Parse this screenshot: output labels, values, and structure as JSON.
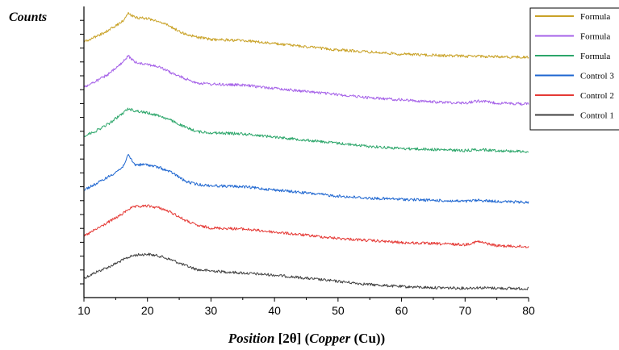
{
  "chart_data": {
    "type": "line",
    "title": "",
    "ylabel": "Counts",
    "xlabel_parts": [
      {
        "text": "Position ",
        "style": "italic"
      },
      {
        "text": "[2θ] (",
        "style": "normal"
      },
      {
        "text": "Copper ",
        "style": "italic"
      },
      {
        "text": "(Cu))",
        "style": "normal"
      }
    ],
    "xlim": [
      10,
      80
    ],
    "x_ticks": [
      10,
      20,
      30,
      40,
      50,
      60,
      70,
      80
    ],
    "y_ticks_labeled": false,
    "y_units": "arbitrary counts (normalized 0-1, series vertically offset)",
    "legend_position": "top-right",
    "grid": false,
    "x": [
      10,
      12,
      14,
      16,
      17,
      18,
      20,
      22,
      24,
      26,
      28,
      30,
      35,
      40,
      45,
      50,
      55,
      60,
      65,
      70,
      72,
      75,
      80
    ],
    "series": [
      {
        "name": "Control 1",
        "color": "#404040",
        "values": [
          0.1,
          0.16,
          0.21,
          0.27,
          0.3,
          0.32,
          0.33,
          0.31,
          0.27,
          0.22,
          0.18,
          0.17,
          0.15,
          0.13,
          0.1,
          0.07,
          0.04,
          0.02,
          0.01,
          0.005,
          0.01,
          0.005,
          0.0
        ]
      },
      {
        "name": "Control 2",
        "color": "#e53935",
        "values": [
          0.1,
          0.17,
          0.24,
          0.31,
          0.36,
          0.38,
          0.39,
          0.37,
          0.32,
          0.25,
          0.2,
          0.18,
          0.17,
          0.14,
          0.11,
          0.08,
          0.06,
          0.04,
          0.03,
          0.02,
          0.05,
          0.01,
          0.0
        ]
      },
      {
        "name": "Control 3",
        "color": "#1e66d0",
        "values": [
          0.12,
          0.18,
          0.25,
          0.33,
          0.45,
          0.36,
          0.36,
          0.33,
          0.28,
          0.2,
          0.17,
          0.16,
          0.15,
          0.12,
          0.09,
          0.06,
          0.04,
          0.03,
          0.02,
          0.01,
          0.02,
          0.01,
          0.0
        ]
      },
      {
        "name": "Formula",
        "color": "#2ca66a",
        "values": [
          0.15,
          0.2,
          0.27,
          0.36,
          0.41,
          0.39,
          0.37,
          0.34,
          0.29,
          0.23,
          0.19,
          0.18,
          0.17,
          0.14,
          0.11,
          0.08,
          0.05,
          0.03,
          0.02,
          0.01,
          0.02,
          0.01,
          0.0
        ]
      },
      {
        "name": "Formula",
        "color": "#a561e8",
        "values": [
          0.16,
          0.22,
          0.29,
          0.39,
          0.46,
          0.4,
          0.38,
          0.35,
          0.29,
          0.24,
          0.2,
          0.19,
          0.18,
          0.15,
          0.12,
          0.09,
          0.06,
          0.04,
          0.02,
          0.01,
          0.03,
          0.01,
          0.0
        ]
      },
      {
        "name": "Formula",
        "color": "#c9a227",
        "values": [
          0.15,
          0.2,
          0.26,
          0.34,
          0.42,
          0.38,
          0.37,
          0.34,
          0.28,
          0.22,
          0.19,
          0.17,
          0.16,
          0.13,
          0.1,
          0.07,
          0.05,
          0.03,
          0.02,
          0.01,
          0.01,
          0.005,
          0.0
        ]
      }
    ],
    "legend": [
      "Formula",
      "Formula",
      "Formula",
      "Control 3",
      "Control 2",
      "Control 1"
    ]
  }
}
